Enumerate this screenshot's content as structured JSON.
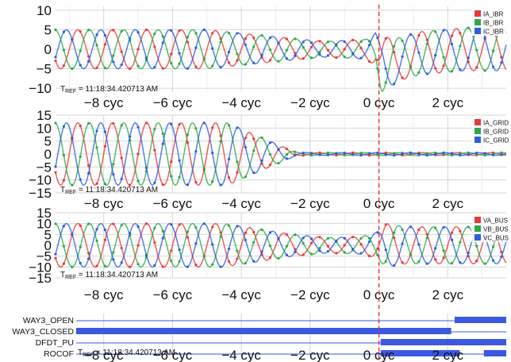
{
  "tref": "11:18:34.420713 AM",
  "tref_prefix": "T",
  "tref_sub": "REF",
  "cursor_position_cyc": 0,
  "x_axis": {
    "unit": "cyc",
    "range": [
      -9.4,
      3.7
    ],
    "ticks": [
      -8,
      -6,
      -4,
      -2,
      0,
      2
    ]
  },
  "colors": {
    "phase_a": "#e8393a",
    "phase_b": "#2fa84a",
    "phase_c": "#2a5fdc",
    "digital": "#3a58e0",
    "cursor": "#e03a3a",
    "grid": "#d6d6d6"
  },
  "chart_data": [
    {
      "type": "line",
      "name_key": "ibr_currents",
      "ylim": [
        -11,
        11
      ],
      "yticks": [
        10,
        5,
        0,
        -5,
        -10
      ],
      "series": [
        {
          "name": "IA_IBR",
          "phase_deg": 0
        },
        {
          "name": "IB_IBR",
          "phase_deg": -120
        },
        {
          "name": "IC_IBR",
          "phase_deg": 120
        }
      ],
      "envelope": [
        [
          -9.4,
          5
        ],
        [
          -5,
          5
        ],
        [
          -2.8,
          3
        ],
        [
          -1.6,
          2
        ],
        [
          -0.4,
          2.5
        ],
        [
          -0.05,
          4.5
        ],
        [
          0.1,
          7
        ],
        [
          0.6,
          5.5
        ],
        [
          3.7,
          5.5
        ]
      ],
      "offset": [
        [
          -9.4,
          0
        ],
        [
          -0.1,
          0
        ],
        [
          0.05,
          -4
        ],
        [
          1.2,
          -1
        ],
        [
          2.5,
          0
        ],
        [
          3.7,
          0
        ]
      ]
    },
    {
      "type": "line",
      "name_key": "grid_currents",
      "ylim": [
        -15,
        15
      ],
      "yticks": [
        15,
        10,
        5,
        0,
        -5,
        -10,
        -15
      ],
      "series": [
        {
          "name": "IA_GRID",
          "phase_deg": 0
        },
        {
          "name": "IB_GRID",
          "phase_deg": -120
        },
        {
          "name": "IC_GRID",
          "phase_deg": 120
        }
      ],
      "envelope": [
        [
          -9.4,
          12
        ],
        [
          -4.4,
          12
        ],
        [
          -3.0,
          4
        ],
        [
          -2.4,
          0.6
        ],
        [
          -2.0,
          0.5
        ],
        [
          3.7,
          0.5
        ]
      ],
      "offset": [
        [
          -9.4,
          0
        ],
        [
          3.7,
          0
        ]
      ]
    },
    {
      "type": "line",
      "name_key": "bus_voltages",
      "ylim": [
        -15,
        15
      ],
      "yticks": [
        15,
        10,
        5,
        0,
        -5,
        -10,
        -15
      ],
      "series": [
        {
          "name": "VA_BUS",
          "phase_deg": 0
        },
        {
          "name": "VB_BUS",
          "phase_deg": -120
        },
        {
          "name": "VC_BUS",
          "phase_deg": 120
        }
      ],
      "envelope": [
        [
          -9.4,
          10
        ],
        [
          -4.5,
          10
        ],
        [
          -2.5,
          5
        ],
        [
          -1.5,
          3.5
        ],
        [
          -0.5,
          4
        ],
        [
          -0.05,
          6
        ],
        [
          0.2,
          10
        ],
        [
          0.8,
          8.5
        ],
        [
          3.7,
          8.5
        ]
      ],
      "offset": [
        [
          -9.4,
          0
        ],
        [
          3.7,
          0
        ]
      ]
    },
    {
      "type": "digital",
      "name_key": "digital_signals",
      "signals": [
        {
          "name": "WAY3_OPEN",
          "segments": [
            [
              2.2,
              3.7
            ]
          ]
        },
        {
          "name": "WAY3_CLOSED",
          "segments": [
            [
              -9.4,
              2.1
            ]
          ]
        },
        {
          "name": "DFDT_PU",
          "segments": [
            [
              0.05,
              3.7
            ]
          ]
        },
        {
          "name": "ROCOF",
          "segments": [
            [
              0.05,
              2.35
            ],
            [
              3.05,
              3.7
            ]
          ]
        }
      ]
    }
  ]
}
